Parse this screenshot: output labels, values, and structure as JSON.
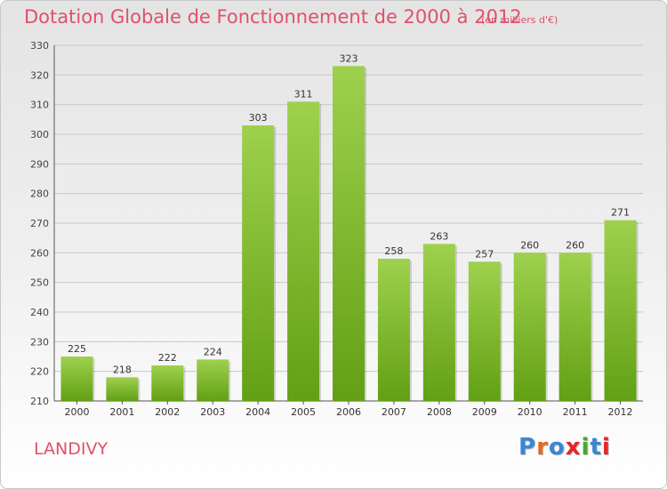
{
  "header": {
    "title": "Dotation Globale de Fonctionnement de 2000 à 2012",
    "subtitle": "(en milliers d'€)"
  },
  "footer": {
    "commune": "LANDIVY",
    "logo_text": "Proxiti"
  },
  "colors": {
    "title": "#e0506a",
    "bar_top": "#9ed14e",
    "bar_bottom": "#62a014",
    "grid": "#c8c8c8",
    "logo": [
      "#3a86d6",
      "#e86a1e",
      "#3a86d6",
      "#e8242a",
      "#4aa82a",
      "#3a86d6",
      "#e8242a"
    ]
  },
  "chart_data": {
    "type": "bar",
    "categories": [
      "2000",
      "2001",
      "2002",
      "2003",
      "2004",
      "2005",
      "2006",
      "2007",
      "2008",
      "2009",
      "2010",
      "2011",
      "2012"
    ],
    "values": [
      225,
      218,
      222,
      224,
      303,
      311,
      323,
      258,
      263,
      257,
      260,
      260,
      271
    ],
    "ylim": [
      210,
      330
    ],
    "yticks": [
      210,
      220,
      230,
      240,
      250,
      260,
      270,
      280,
      290,
      300,
      310,
      320,
      330
    ],
    "grid": true,
    "legend": "none"
  }
}
